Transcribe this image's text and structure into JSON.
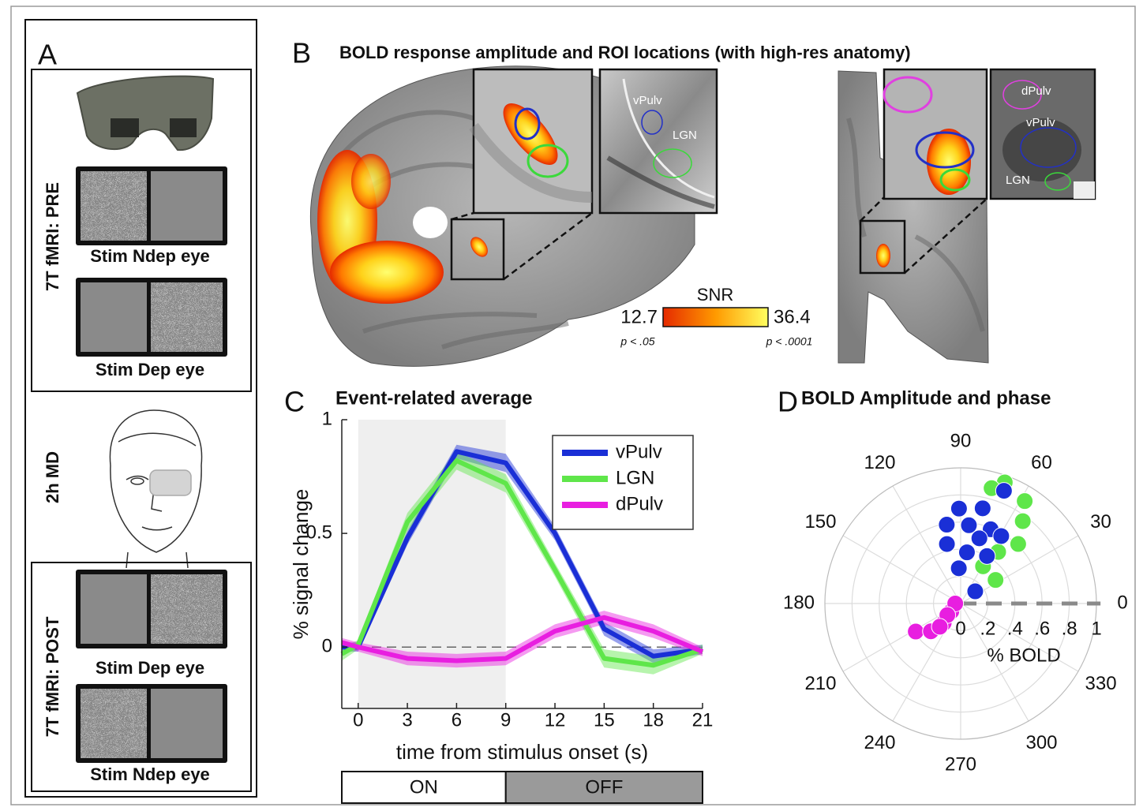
{
  "panel_a": {
    "label": "A",
    "pre_label": "7T fMRI: PRE",
    "pre_captions": [
      "Stim Ndep eye",
      "Stim Dep eye"
    ],
    "md_label": "2h MD",
    "post_label": "7T fMRI: POST",
    "post_captions": [
      "Stim Dep eye",
      "Stim Ndep eye"
    ]
  },
  "panel_b": {
    "label": "B",
    "title": "BOLD response amplitude and ROI locations (with high-res anatomy)",
    "sagittal_roi_labels": [
      "vPulv",
      "LGN"
    ],
    "coronal_roi_labels": [
      "dPulv",
      "vPulv",
      "LGN"
    ],
    "colorbar": {
      "title": "SNR",
      "min": 12.7,
      "max": 36.4,
      "min_note": "p < .05",
      "max_note": "p < .0001"
    }
  },
  "chart_data": [
    {
      "type": "line",
      "panel": "C",
      "title": "Event-related average",
      "xlabel": "time from stimulus onset (s)",
      "ylabel": "% signal change",
      "x": [
        -1,
        0,
        3,
        6,
        9,
        12,
        15,
        18,
        21
      ],
      "xlim": [
        -1,
        21
      ],
      "ylim": [
        -0.27,
        1
      ],
      "xticks": [
        0,
        3,
        6,
        9,
        12,
        15,
        18,
        21
      ],
      "yticks": [
        0,
        0.5,
        1
      ],
      "shaded": [
        0,
        9
      ],
      "zero_line": true,
      "stimulus_bar": [
        "ON",
        "OFF"
      ],
      "series": [
        {
          "name": "vPulv",
          "color": "#1a2fd6",
          "values": [
            0.0,
            0.0,
            0.48,
            0.86,
            0.81,
            0.5,
            0.08,
            -0.04,
            -0.01
          ],
          "errors": [
            0.02,
            0.02,
            0.03,
            0.03,
            0.04,
            0.03,
            0.03,
            0.03,
            0.02
          ]
        },
        {
          "name": "LGN",
          "color": "#5fe64a",
          "values": [
            -0.03,
            0.01,
            0.55,
            0.82,
            0.72,
            0.34,
            -0.05,
            -0.08,
            -0.01
          ],
          "errors": [
            0.03,
            0.02,
            0.04,
            0.04,
            0.04,
            0.03,
            0.04,
            0.04,
            0.02
          ]
        },
        {
          "name": "dPulv",
          "color": "#e81ee0",
          "values": [
            0.02,
            0.0,
            -0.05,
            -0.06,
            -0.05,
            0.07,
            0.13,
            0.07,
            -0.02
          ],
          "errors": [
            0.02,
            0.02,
            0.03,
            0.03,
            0.03,
            0.03,
            0.03,
            0.03,
            0.02
          ]
        }
      ]
    },
    {
      "type": "polar",
      "panel": "D",
      "title": "BOLD Amplitude and phase",
      "rlabel": "% BOLD",
      "rlim": [
        0,
        1
      ],
      "rticks": [
        0,
        {
          "value": 0.2,
          "label": ".2"
        },
        {
          "value": 0.4,
          "label": ".4"
        },
        {
          "value": 0.6,
          "label": ".6"
        },
        {
          "value": 0.8,
          "label": ".8"
        },
        1
      ],
      "thetaticks": [
        0,
        30,
        60,
        90,
        120,
        150,
        180,
        210,
        240,
        270,
        300,
        330
      ],
      "reference_angle": 0,
      "series": [
        {
          "color": "#5fe64a",
          "r": [
            0.95,
            0.89,
            0.88,
            0.76,
            0.61,
            0.47,
            0.32,
            0.31
          ],
          "theta": [
            70,
            58,
            75,
            53,
            46,
            54,
            59,
            34
          ]
        },
        {
          "color": "#1a2fd6",
          "r": [
            0.7,
            0.72,
            0.89,
            0.59,
            0.58,
            0.59,
            0.58,
            0.5,
            0.45,
            0.38,
            0.4,
            0.26,
            0.14
          ],
          "theta": [
            91,
            77,
            69,
            100,
            84,
            68,
            59,
            74,
            103,
            83,
            61,
            93,
            40
          ]
        },
        {
          "color": "#e81ee0",
          "r": [
            0.39,
            0.3,
            0.19,
            0.09,
            0.04,
            0.13,
            0.23
          ],
          "theta": [
            212,
            223,
            229,
            220,
            180,
            221,
            228
          ]
        }
      ]
    }
  ]
}
